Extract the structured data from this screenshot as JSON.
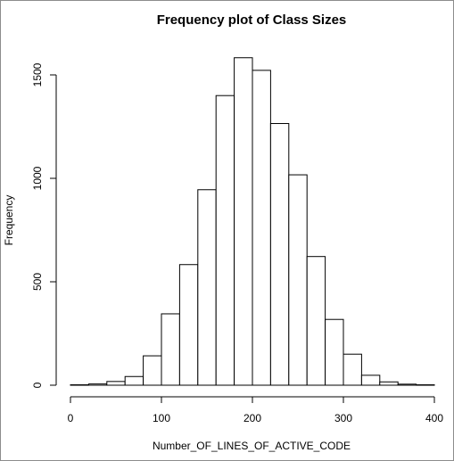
{
  "chart_data": {
    "type": "bar",
    "title": "Frequency plot of Class Sizes",
    "xlabel": "Number_OF_LINES_OF_ACTIVE_CODE",
    "ylabel": "Frequency",
    "xlim": [
      0,
      400
    ],
    "ylim": [
      0,
      1600
    ],
    "x_ticks": [
      0,
      100,
      200,
      300,
      400
    ],
    "y_ticks": [
      0,
      500,
      1000,
      1500
    ],
    "bin_width": 20,
    "bins": [
      {
        "x0": 0,
        "x1": 20,
        "value": 2
      },
      {
        "x0": 20,
        "x1": 40,
        "value": 6
      },
      {
        "x0": 40,
        "x1": 60,
        "value": 18
      },
      {
        "x0": 60,
        "x1": 80,
        "value": 42
      },
      {
        "x0": 80,
        "x1": 100,
        "value": 142
      },
      {
        "x0": 100,
        "x1": 120,
        "value": 345
      },
      {
        "x0": 120,
        "x1": 140,
        "value": 583
      },
      {
        "x0": 140,
        "x1": 160,
        "value": 945
      },
      {
        "x0": 160,
        "x1": 180,
        "value": 1400
      },
      {
        "x0": 180,
        "x1": 200,
        "value": 1583
      },
      {
        "x0": 200,
        "x1": 220,
        "value": 1522
      },
      {
        "x0": 220,
        "x1": 240,
        "value": 1265
      },
      {
        "x0": 240,
        "x1": 260,
        "value": 1017
      },
      {
        "x0": 260,
        "x1": 280,
        "value": 622
      },
      {
        "x0": 280,
        "x1": 300,
        "value": 318
      },
      {
        "x0": 300,
        "x1": 320,
        "value": 150
      },
      {
        "x0": 320,
        "x1": 340,
        "value": 48
      },
      {
        "x0": 340,
        "x1": 360,
        "value": 16
      },
      {
        "x0": 360,
        "x1": 380,
        "value": 5
      },
      {
        "x0": 380,
        "x1": 400,
        "value": 2
      }
    ],
    "grid": false,
    "legend": "none",
    "bar_fill": "#ffffff",
    "bar_stroke": "#000000"
  }
}
